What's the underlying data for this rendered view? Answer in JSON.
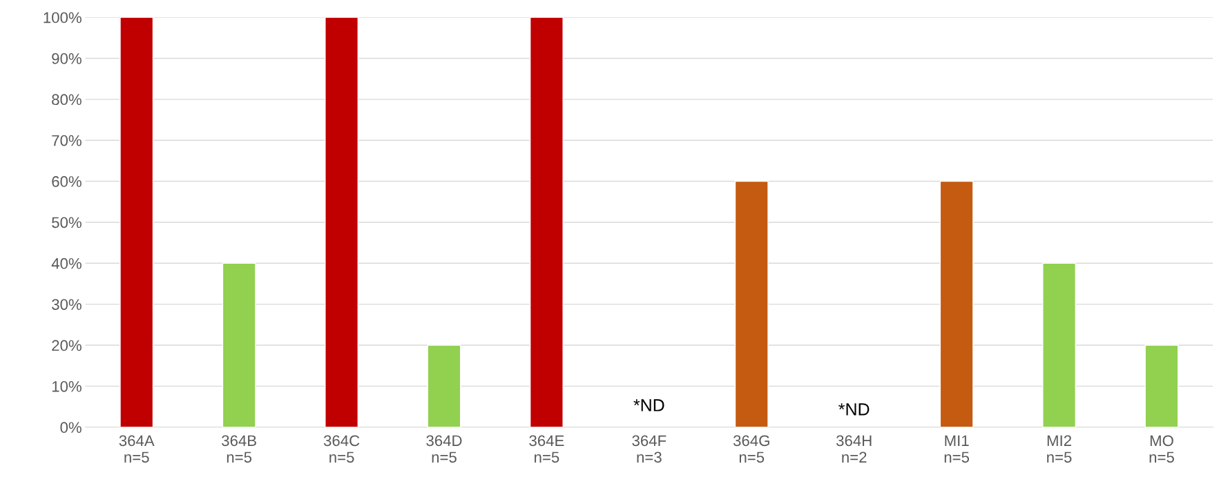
{
  "chart_data": {
    "type": "bar",
    "categories": [
      "364A\nn=5",
      "364B\nn=5",
      "364C\nn=5",
      "364D\nn=5",
      "364E\nn=5",
      "364F\nn=3",
      "364G\nn=5",
      "364H\nn=2",
      "MI1\nn=5",
      "MI2\nn=5",
      "MO\nn=5"
    ],
    "values": [
      100,
      40,
      100,
      20,
      100,
      null,
      60,
      null,
      60,
      40,
      20
    ],
    "colors": [
      "#c00000",
      "#92d050",
      "#c00000",
      "#92d050",
      "#c00000",
      "#92d050",
      "#c55a11",
      "#92d050",
      "#c55a11",
      "#92d050",
      "#92d050"
    ],
    "ylim": [
      0,
      100
    ],
    "yticks": [
      {
        "value": 0,
        "label": "0%"
      },
      {
        "value": 10,
        "label": "10%"
      },
      {
        "value": 20,
        "label": "20%"
      },
      {
        "value": 30,
        "label": "30%"
      },
      {
        "value": 40,
        "label": "40%"
      },
      {
        "value": 50,
        "label": "50%"
      },
      {
        "value": 60,
        "label": "60%"
      },
      {
        "value": 70,
        "label": "70%"
      },
      {
        "value": 80,
        "label": "80%"
      },
      {
        "value": 90,
        "label": "90%"
      },
      {
        "value": 100,
        "label": "100%"
      }
    ],
    "annotations": [
      "*ND",
      "*ND"
    ],
    "grid": "y",
    "legend": false
  }
}
